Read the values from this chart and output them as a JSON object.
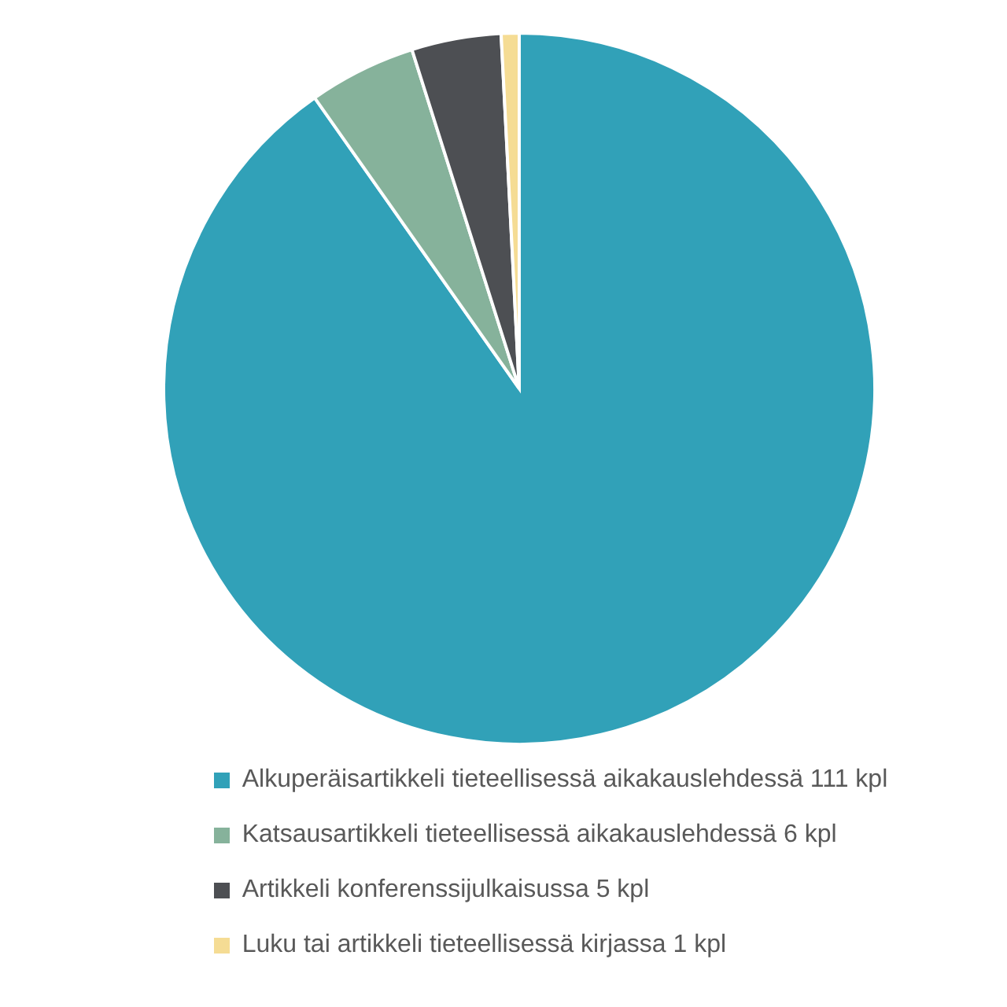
{
  "chart_data": {
    "type": "pie",
    "categories": [
      "Alkuperäisartikkeli tieteellisessä aikakauslehdessä 111 kpl",
      "Katsausartikkeli tieteellisessä aikakauslehdessä 6 kpl",
      "Artikkeli konferenssijulkaisussa 5 kpl",
      "Luku tai artikkeli tieteellisessä kirjassa 1 kpl"
    ],
    "values": [
      111,
      6,
      5,
      1
    ],
    "colors": [
      "#31a1b8",
      "#86b29b",
      "#4d4f53",
      "#f5dc94"
    ],
    "legend": "bottom"
  }
}
